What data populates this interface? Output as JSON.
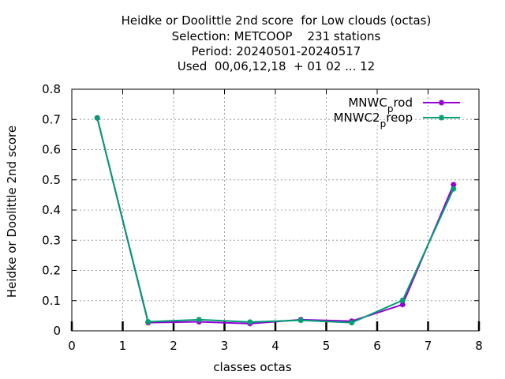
{
  "chart_data": {
    "type": "line",
    "title_lines": [
      "Heidke or Doolittle 2nd score  for Low clouds (octas)",
      "Selection: METCOOP    231 stations",
      "Period: 20240501-20240517",
      "Used  00,06,12,18  + 01 02 ... 12"
    ],
    "xlabel": "classes octas",
    "ylabel": "Heidke or Doolittle 2nd score",
    "xlim": [
      0,
      8
    ],
    "ylim": [
      0,
      0.8
    ],
    "xticks": [
      "0",
      "1",
      "2",
      "3",
      "4",
      "5",
      "6",
      "7",
      "8"
    ],
    "yticks": [
      "0",
      "0.1",
      "0.2",
      "0.3",
      "0.4",
      "0.5",
      "0.6",
      "0.7",
      "0.8"
    ],
    "grid": true,
    "legend_position": "top-right",
    "x": [
      0.5,
      1.5,
      2.5,
      3.5,
      4.5,
      5.5,
      6.5,
      7.5
    ],
    "series": [
      {
        "name": "MNWC_prod",
        "legend_main": "MNWC",
        "legend_sub": "p",
        "legend_rest": "rod",
        "color": "#9400d3",
        "values": [
          0.705,
          0.027,
          0.03,
          0.024,
          0.037,
          0.032,
          0.087,
          0.484
        ]
      },
      {
        "name": "MNWC2_preop",
        "legend_main": "MNWC2",
        "legend_sub": "p",
        "legend_rest": "reop",
        "color": "#009e73",
        "values": [
          0.705,
          0.03,
          0.037,
          0.029,
          0.035,
          0.027,
          0.101,
          0.47
        ]
      }
    ]
  }
}
